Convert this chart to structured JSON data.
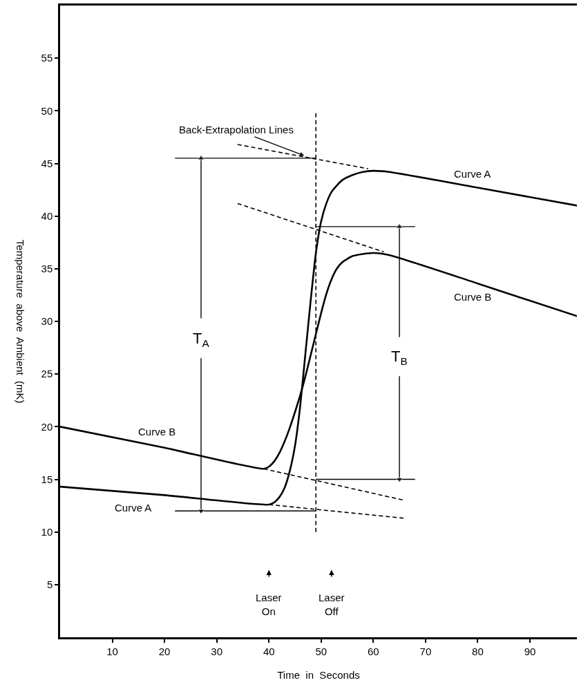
{
  "chart_data": {
    "type": "line",
    "xlabel": "Time  in  Seconds",
    "ylabel": "Temperature  above  Ambient  (mK)",
    "xlim": [
      0,
      99
    ],
    "ylim": [
      0,
      60
    ],
    "xticks": [
      10,
      20,
      30,
      40,
      50,
      60,
      70,
      80,
      90
    ],
    "yticks": [
      5,
      10,
      15,
      20,
      25,
      30,
      35,
      40,
      45,
      50,
      55
    ],
    "grid": false,
    "marker": "none",
    "series": [
      {
        "color": "#000000",
        "line_style": "solid",
        "x": [
          0,
          20,
          40,
          41,
          42,
          43,
          44,
          45,
          46,
          47,
          48,
          49,
          50,
          51,
          52,
          54,
          56,
          58,
          60,
          63,
          80,
          99
        ],
        "values": [
          14.3,
          13.5,
          12.6,
          12.8,
          13.3,
          14.2,
          15.8,
          18.2,
          22,
          27,
          32,
          36.5,
          39.5,
          41.2,
          42.3,
          43.4,
          43.9,
          44.2,
          44.3,
          44.2,
          42.7,
          41
        ]
      },
      {
        "color": "#000000",
        "line_style": "solid",
        "x": [
          0,
          20,
          39,
          40,
          41,
          42,
          43,
          44,
          45,
          46,
          47,
          48,
          49,
          50,
          51,
          52,
          53,
          54,
          56,
          58,
          60,
          63,
          80,
          99
        ],
        "values": [
          20,
          18,
          16,
          16.2,
          16.7,
          17.5,
          18.6,
          19.9,
          21.4,
          23,
          24.8,
          26.8,
          28.8,
          30.8,
          32.6,
          34,
          35,
          35.6,
          36.2,
          36.4,
          36.5,
          36.3,
          33.6,
          30.5
        ]
      },
      {
        "color": "#000000",
        "line_style": "dashed",
        "x": [
          34,
          59
        ],
        "values": [
          46.8,
          44.5
        ]
      },
      {
        "color": "#000000",
        "line_style": "dashed",
        "x": [
          34,
          62
        ],
        "values": [
          41.2,
          36.6
        ]
      },
      {
        "color": "#000000",
        "line_style": "dashed",
        "x": [
          40,
          66
        ],
        "values": [
          12.6,
          11.3
        ]
      },
      {
        "color": "#000000",
        "line_style": "dashed",
        "x": [
          39,
          66
        ],
        "values": [
          16,
          13
        ]
      },
      {
        "color": "#000000",
        "line_style": "dashed",
        "x": [
          49,
          49
        ],
        "values": [
          10,
          50
        ]
      },
      {
        "color": "#000000",
        "line_style": "solid",
        "x": [
          22,
          49
        ],
        "values": [
          45.5,
          45.5
        ]
      },
      {
        "color": "#000000",
        "line_style": "solid",
        "x": [
          22,
          49
        ],
        "values": [
          12,
          12
        ]
      },
      {
        "color": "#000000",
        "line_style": "solid",
        "x": [
          49,
          68
        ],
        "values": [
          39,
          39
        ]
      },
      {
        "color": "#000000",
        "line_style": "solid",
        "x": [
          49,
          68
        ],
        "values": [
          15,
          15
        ]
      },
      {
        "color": "#000000",
        "line_style": "solid",
        "marker": "triangle",
        "x": [
          27,
          27
        ],
        "values": [
          26.5,
          12
        ]
      },
      {
        "color": "#000000",
        "line_style": "solid",
        "marker": "triangle",
        "x": [
          27,
          27
        ],
        "values": [
          30.3,
          45.5
        ]
      },
      {
        "color": "#000000",
        "line_style": "solid",
        "marker": "triangle",
        "x": [
          65,
          65
        ],
        "values": [
          24.8,
          15
        ]
      },
      {
        "color": "#000000",
        "line_style": "solid",
        "marker": "triangle",
        "x": [
          65,
          65
        ],
        "values": [
          28.5,
          39
        ]
      }
    ],
    "annotations": [
      "Curve A",
      "Curve B",
      "Curve B",
      "Curve A",
      "T$_{A}$",
      "T$_{B}$",
      {
        "text": "Back-Extrapolation Lines",
        "x": 47,
        "y": 45.7
      },
      "Laser\nOn",
      "Laser\nOff"
    ]
  }
}
